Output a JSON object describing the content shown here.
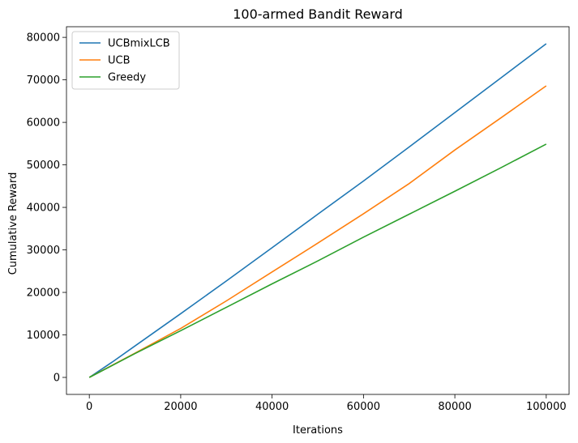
{
  "chart_data": {
    "type": "line",
    "title": "100-armed Bandit Reward",
    "xlabel": "Iterations",
    "ylabel": "Cumulative Reward",
    "xlim": [
      -5000,
      105000
    ],
    "ylim": [
      -4000,
      82500
    ],
    "xticks": [
      0,
      20000,
      40000,
      60000,
      80000,
      100000
    ],
    "yticks": [
      0,
      10000,
      20000,
      30000,
      40000,
      50000,
      60000,
      70000,
      80000
    ],
    "legend_position": "top-left",
    "grid": false,
    "series": [
      {
        "name": "UCBmixLCB",
        "color": "#1f77b4",
        "x": [
          0,
          5000,
          10000,
          20000,
          30000,
          40000,
          50000,
          60000,
          70000,
          80000,
          90000,
          100000
        ],
        "y": [
          0,
          3600,
          7400,
          15000,
          22700,
          30500,
          38400,
          46200,
          54200,
          62300,
          70400,
          78500
        ]
      },
      {
        "name": "UCB",
        "color": "#ff7f0e",
        "x": [
          0,
          5000,
          10000,
          20000,
          30000,
          40000,
          50000,
          60000,
          70000,
          80000,
          90000,
          100000
        ],
        "y": [
          0,
          2850,
          5700,
          11500,
          18000,
          24800,
          31600,
          38500,
          45600,
          53500,
          61000,
          68600
        ]
      },
      {
        "name": "Greedy",
        "color": "#2ca02c",
        "x": [
          0,
          5000,
          10000,
          20000,
          30000,
          40000,
          50000,
          60000,
          70000,
          80000,
          90000,
          100000
        ],
        "y": [
          0,
          2800,
          5600,
          11000,
          16500,
          22000,
          27400,
          33000,
          38400,
          43800,
          49300,
          54900
        ]
      }
    ]
  }
}
